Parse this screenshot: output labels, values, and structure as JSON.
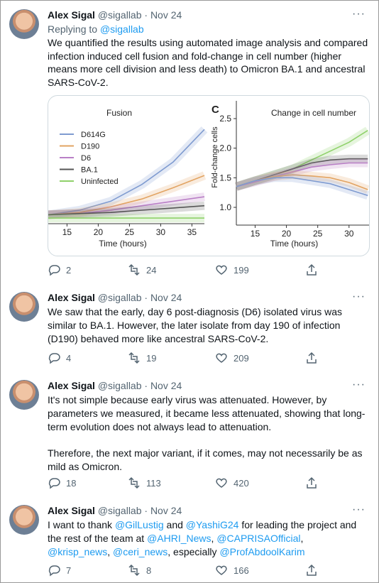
{
  "tweets": [
    {
      "author": "Alex Sigal",
      "handle": "@sigallab",
      "date": "· Nov 24",
      "replying": {
        "prefix": "Replying to ",
        "handle": "@sigallab"
      },
      "paragraphs": [
        [
          {
            "text": "We quantified the results using automated image analysis and compared infection induced cell fusion and fold-change in cell number (higher means more cell division and less death) to Omicron BA.1 and ancestral SARS-CoV-2."
          }
        ]
      ],
      "image": {
        "charts": [
          {
            "type": "line",
            "title": "Fusion",
            "x_label": "Time (hours)",
            "xlim": [
              12,
              37
            ],
            "xticks": [
              15,
              20,
              25,
              30,
              35
            ],
            "ylim": [
              0,
              1
            ],
            "x": [
              12,
              17,
              22,
              27,
              32,
              37
            ],
            "series": [
              {
                "name": "D614G",
                "color": "#7f9bd0",
                "values": [
                  0.08,
                  0.12,
                  0.2,
                  0.35,
                  0.55,
                  0.84
                ]
              },
              {
                "name": "D190",
                "color": "#e2a463",
                "values": [
                  0.08,
                  0.1,
                  0.15,
                  0.22,
                  0.32,
                  0.43
                ]
              },
              {
                "name": "D6",
                "color": "#b97fc6",
                "values": [
                  0.08,
                  0.09,
                  0.12,
                  0.16,
                  0.2,
                  0.24
                ]
              },
              {
                "name": "BA.1",
                "color": "#555555",
                "values": [
                  0.08,
                  0.09,
                  0.1,
                  0.12,
                  0.14,
                  0.16
                ]
              },
              {
                "name": "Uninfected",
                "color": "#8fd16a",
                "values": [
                  0.05,
                  0.05,
                  0.05,
                  0.05,
                  0.05,
                  0.05
                ]
              }
            ]
          },
          {
            "type": "line",
            "panel": "C",
            "title": "Change in cell number",
            "x_label": "Time (hours)",
            "y_label": "Fold-change cells",
            "xlim": [
              12,
              33.2
            ],
            "xticks": [
              15,
              20,
              25,
              30
            ],
            "ylim": [
              0.7,
              2.8
            ],
            "yticks": [
              {
                "value": 1,
                "label": "1.0"
              },
              1.5,
              {
                "value": 2,
                "label": "2.0"
              },
              2.5
            ],
            "x": [
              12,
              15,
              18,
              21,
              24,
              27,
              30,
              33
            ],
            "series": [
              {
                "color": "#8fd16a",
                "values": [
                  1.35,
                  1.45,
                  1.55,
                  1.65,
                  1.8,
                  1.95,
                  2.1,
                  2.3
                ]
              },
              {
                "color": "#555555",
                "values": [
                  1.35,
                  1.45,
                  1.55,
                  1.65,
                  1.75,
                  1.8,
                  1.82,
                  1.82
                ]
              },
              {
                "color": "#b97fc6",
                "values": [
                  1.35,
                  1.43,
                  1.52,
                  1.6,
                  1.68,
                  1.72,
                  1.75,
                  1.75
                ]
              },
              {
                "color": "#e2a463",
                "values": [
                  1.35,
                  1.45,
                  1.52,
                  1.55,
                  1.53,
                  1.5,
                  1.42,
                  1.3
                ]
              },
              {
                "color": "#7f9bd0",
                "values": [
                  1.35,
                  1.45,
                  1.5,
                  1.5,
                  1.45,
                  1.4,
                  1.3,
                  1.2
                ]
              }
            ]
          }
        ]
      },
      "stats": {
        "replies": 2,
        "retweets": 24,
        "likes": 199
      }
    },
    {
      "author": "Alex Sigal",
      "handle": "@sigallab",
      "date": "· Nov 24",
      "paragraphs": [
        [
          {
            "text": "We saw that the early, day 6 post-diagnosis (D6) isolated virus was similar to BA.1. However, the later isolate from day 190 of infection (D190) behaved more like ancestral SARS-CoV-2."
          }
        ]
      ],
      "stats": {
        "replies": 4,
        "retweets": 19,
        "likes": 209
      }
    },
    {
      "author": "Alex Sigal",
      "handle": "@sigallab",
      "date": "· Nov 24",
      "paragraphs": [
        [
          {
            "text": "It's not simple because early virus was attenuated. However, by parameters we measured, it became less attenuated, showing that long-term evolution does not always lead to attenuation."
          }
        ],
        [
          {
            "text": "Therefore, the next major variant, if it comes, may not necessarily be as mild as Omicron."
          }
        ]
      ],
      "stats": {
        "replies": 18,
        "retweets": 113,
        "likes": 420
      }
    },
    {
      "author": "Alex Sigal",
      "handle": "@sigallab",
      "date": "· Nov 24",
      "paragraphs": [
        [
          {
            "text": "I want to thank "
          },
          {
            "text": "@GilLustig",
            "link": true
          },
          {
            "text": " and "
          },
          {
            "text": "@YashiG24",
            "link": true
          },
          {
            "text": " for leading the project and the rest of the team at "
          },
          {
            "text": "@AHRI_News",
            "link": true
          },
          {
            "text": ", "
          },
          {
            "text": "@CAPRISAOfficial",
            "link": true
          },
          {
            "text": ", "
          },
          {
            "text": "@krisp_news",
            "link": true
          },
          {
            "text": ", "
          },
          {
            "text": "@ceri_news",
            "link": true
          },
          {
            "text": ", especially "
          },
          {
            "text": "@ProfAbdoolKarim",
            "link": true
          }
        ]
      ],
      "stats": {
        "replies": 7,
        "retweets": 8,
        "likes": 166
      }
    }
  ]
}
